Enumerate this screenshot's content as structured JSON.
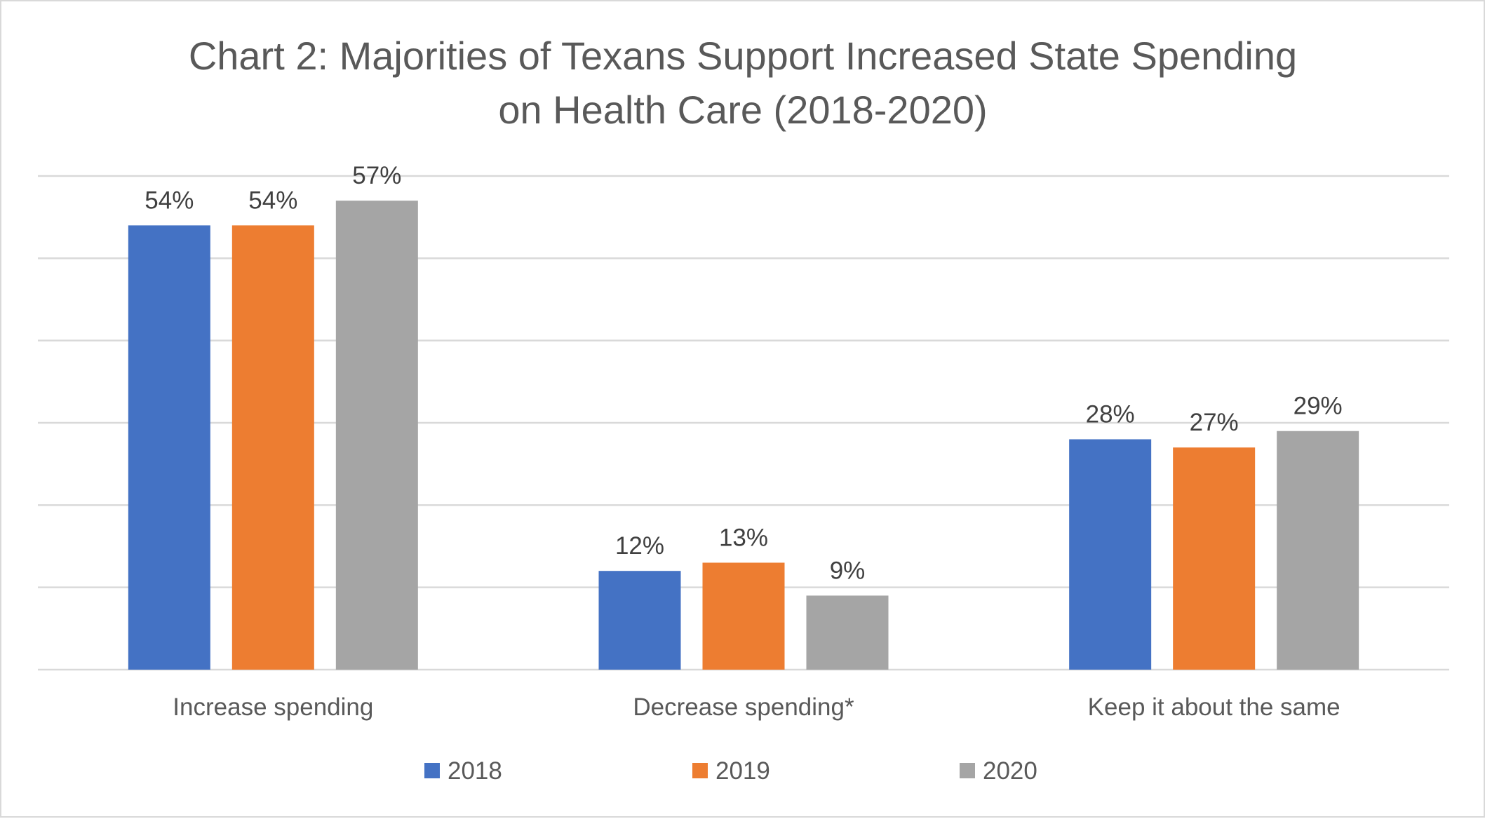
{
  "chart_data": {
    "type": "bar",
    "title_lines": [
      "Chart 2: Majorities of Texans Support Increased State Spending",
      "on Health Care (2018-2020)"
    ],
    "categories": [
      "Increase spending",
      "Decrease spending*",
      "Keep it about the same"
    ],
    "series": [
      {
        "name": "2018",
        "color": "#4472c4",
        "values": [
          54,
          12,
          28
        ]
      },
      {
        "name": "2019",
        "color": "#ed7d31",
        "values": [
          54,
          13,
          27
        ]
      },
      {
        "name": "2020",
        "color": "#a5a5a5",
        "values": [
          57,
          9,
          29
        ]
      }
    ],
    "data_label_suffix": "%",
    "ylim": [
      0,
      60
    ],
    "gridline_step": 10,
    "grid": true,
    "legend_position": "bottom"
  }
}
